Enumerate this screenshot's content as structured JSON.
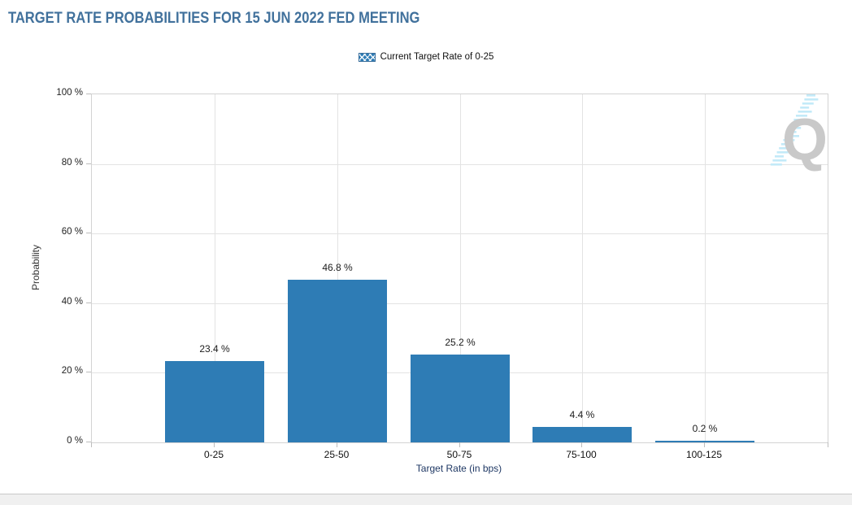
{
  "header": {
    "title": "TARGET RATE PROBABILITIES FOR 15 JUN 2022 FED MEETING"
  },
  "watermark": {
    "letter": "Q"
  },
  "chart_data": {
    "type": "bar",
    "title": "TARGET RATE PROBABILITIES FOR 15 JUN 2022 FED MEETING",
    "categories": [
      "0-25",
      "25-50",
      "50-75",
      "75-100",
      "100-125"
    ],
    "values": [
      23.4,
      46.8,
      25.2,
      4.4,
      0.2
    ],
    "bar_labels": [
      "23.4 %",
      "46.8 %",
      "25.2 %",
      "4.4 %",
      "0.2 %"
    ],
    "hatched_category_index": 0,
    "xlabel": "Target Rate (in bps)",
    "ylabel": "Probability",
    "ylim": [
      0,
      100
    ],
    "ytick_labels": [
      "0 %",
      "20 %",
      "40 %",
      "60 %",
      "80 %",
      "100 %"
    ],
    "grid": true,
    "legend_position": "top-center",
    "legend": [
      {
        "label": "Current Target Rate of 0-25",
        "style": "hatched"
      }
    ],
    "colors": {
      "bar": "#2e7cb5",
      "hatch_lines": "#ffffff",
      "title": "#41719c",
      "xlabel_text": "#1f3864",
      "gridline": "#e3e3e3",
      "plot_border": "#d3d3d3",
      "watermark_gray": "#c9c9c9",
      "watermark_blue": "#c3eaf8"
    }
  }
}
